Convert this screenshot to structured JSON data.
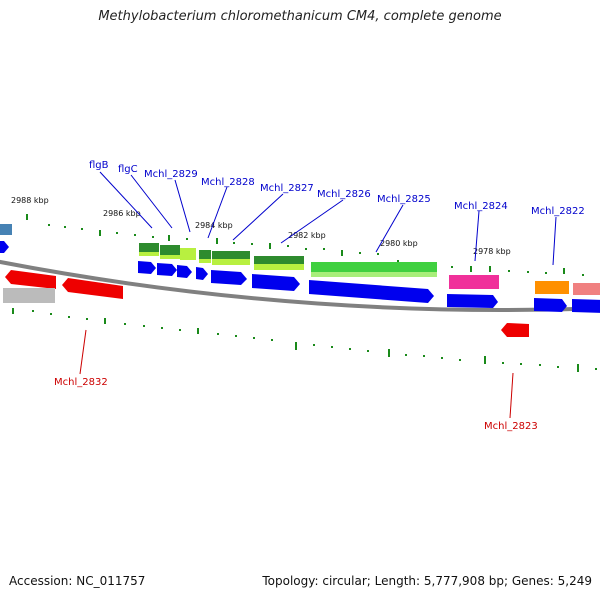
{
  "title": "Methylobacterium chloromethanicum CM4, complete genome",
  "footer": {
    "accession": "Accession: NC_011757",
    "summary": "Topology: circular; Length: 5,777,908 bp; Genes: 5,249"
  },
  "kbp_labels": [
    "2988 kbp",
    "2986 kbp",
    "2984 kbp",
    "2982 kbp",
    "2980 kbp",
    "2978 kbp"
  ],
  "gene_labels_top": [
    "flgB",
    "flgC",
    "Mchl_2829",
    "Mchl_2828",
    "Mchl_2827",
    "Mchl_2826",
    "Mchl_2825",
    "Mchl_2824",
    "Mchl_2822"
  ],
  "gene_labels_bottom": [
    "Mchl_2832",
    "Mchl_2823"
  ],
  "colors": {
    "backbone": "#808080",
    "forward_cds": "#0000ee",
    "reverse_cds": "#ee0000",
    "label_forward": "#0000cc",
    "label_reverse": "#cc0000",
    "tick": "#1a8a1a",
    "dark_green": "#2e8b2e",
    "light_green": "#b8f040",
    "bright_green": "#40d040",
    "magenta": "#f0309a",
    "orange": "#ff9000",
    "pink": "#f08080",
    "gray": "#bbbbbb",
    "steel_blue": "#4682b4"
  }
}
